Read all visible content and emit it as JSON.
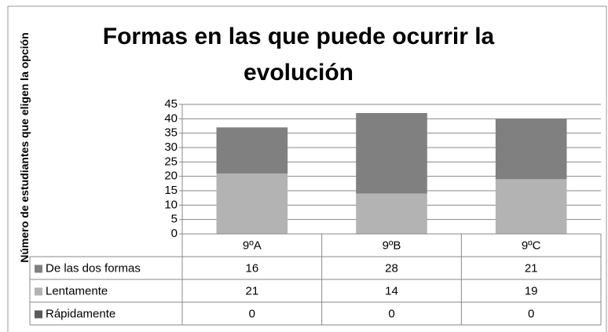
{
  "chart_data": {
    "type": "bar",
    "stacked": true,
    "title": "Formas en las que puede ocurrir la evolución",
    "y_label": "Número de estudiantes que eligen la opción",
    "categories": [
      "9ºA",
      "9ºB",
      "9ºC"
    ],
    "series": [
      {
        "name": "De las dos formas",
        "color": "#808080",
        "values": [
          16,
          28,
          21
        ]
      },
      {
        "name": "Lentamente",
        "color": "#b3b3b3",
        "values": [
          21,
          14,
          19
        ]
      },
      {
        "name": "Rápidamente",
        "color": "#595959",
        "values": [
          0,
          0,
          0
        ]
      }
    ],
    "ylim": [
      0,
      45
    ],
    "yticks": [
      0,
      5,
      10,
      15,
      20,
      25,
      30,
      35,
      40,
      45
    ],
    "grid": true,
    "data_table": true
  }
}
